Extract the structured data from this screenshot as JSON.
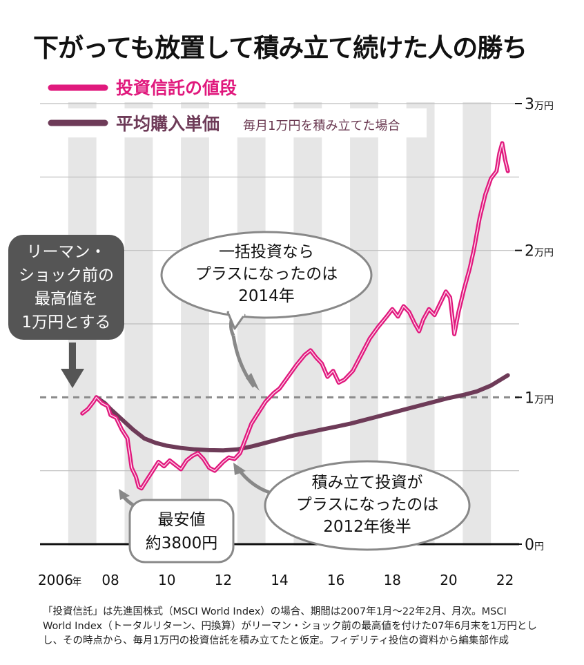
{
  "title": "下がっても放置して積み立て続けた人の勝ち",
  "legend": {
    "price_label": "投資信託の値段",
    "avg_label": "平均購入単価",
    "avg_note": "毎月1万円を積み立てた場合"
  },
  "colors": {
    "price": "#e0197d",
    "avg": "#6e3b58",
    "stripe": "#e6e6e6",
    "bubble_dark": "#555555",
    "bubble_light": "#ffffff"
  },
  "chart_data": {
    "type": "line",
    "x_unit": "年",
    "x_ticks": [
      {
        "value": 2006,
        "label": "2006",
        "unit": "年"
      },
      {
        "value": 2008,
        "label": "08"
      },
      {
        "value": 2010,
        "label": "10"
      },
      {
        "value": 2012,
        "label": "12"
      },
      {
        "value": 2014,
        "label": "14"
      },
      {
        "value": 2016,
        "label": "16"
      },
      {
        "value": 2018,
        "label": "18"
      },
      {
        "value": 2020,
        "label": "20"
      },
      {
        "value": 2022,
        "label": "22"
      }
    ],
    "y_ticks": [
      {
        "value": 0,
        "label": "0",
        "unit": "円"
      },
      {
        "value": 10000,
        "label": "1",
        "unit": "万円"
      },
      {
        "value": 20000,
        "label": "2",
        "unit": "万円"
      },
      {
        "value": 30000,
        "label": "3",
        "unit": "万円"
      }
    ],
    "xlim": [
      2005.5,
      2022.5
    ],
    "ylim": [
      0,
      30000
    ],
    "reference_line": {
      "y": 10000,
      "style": "dashed"
    },
    "series": [
      {
        "name": "投資信託の値段",
        "color": "#e0197d",
        "points": [
          [
            2007.0,
            8900
          ],
          [
            2007.2,
            9200
          ],
          [
            2007.4,
            9700
          ],
          [
            2007.5,
            10000
          ],
          [
            2007.7,
            9600
          ],
          [
            2007.9,
            9400
          ],
          [
            2008.0,
            8800
          ],
          [
            2008.2,
            8600
          ],
          [
            2008.4,
            7800
          ],
          [
            2008.6,
            7200
          ],
          [
            2008.75,
            5200
          ],
          [
            2008.9,
            4600
          ],
          [
            2009.0,
            3900
          ],
          [
            2009.1,
            3800
          ],
          [
            2009.3,
            4400
          ],
          [
            2009.5,
            5000
          ],
          [
            2009.7,
            5600
          ],
          [
            2009.9,
            5300
          ],
          [
            2010.1,
            5700
          ],
          [
            2010.3,
            5400
          ],
          [
            2010.5,
            5100
          ],
          [
            2010.7,
            5700
          ],
          [
            2010.9,
            6000
          ],
          [
            2011.1,
            6200
          ],
          [
            2011.3,
            5800
          ],
          [
            2011.5,
            5200
          ],
          [
            2011.7,
            5000
          ],
          [
            2011.9,
            5400
          ],
          [
            2012.0,
            5600
          ],
          [
            2012.2,
            5900
          ],
          [
            2012.4,
            5800
          ],
          [
            2012.6,
            6200
          ],
          [
            2012.8,
            7200
          ],
          [
            2013.0,
            8200
          ],
          [
            2013.2,
            8800
          ],
          [
            2013.5,
            9700
          ],
          [
            2013.8,
            10300
          ],
          [
            2014.0,
            10600
          ],
          [
            2014.3,
            11400
          ],
          [
            2014.6,
            12200
          ],
          [
            2014.9,
            12900
          ],
          [
            2015.1,
            13200
          ],
          [
            2015.3,
            12700
          ],
          [
            2015.5,
            12300
          ],
          [
            2015.7,
            11400
          ],
          [
            2015.9,
            11800
          ],
          [
            2016.1,
            11000
          ],
          [
            2016.3,
            11200
          ],
          [
            2016.6,
            11800
          ],
          [
            2016.9,
            12900
          ],
          [
            2017.2,
            14000
          ],
          [
            2017.5,
            14800
          ],
          [
            2017.8,
            15500
          ],
          [
            2018.0,
            16000
          ],
          [
            2018.2,
            15500
          ],
          [
            2018.4,
            16200
          ],
          [
            2018.6,
            15800
          ],
          [
            2018.8,
            15000
          ],
          [
            2018.95,
            14500
          ],
          [
            2019.1,
            15300
          ],
          [
            2019.3,
            16000
          ],
          [
            2019.5,
            15600
          ],
          [
            2019.7,
            16400
          ],
          [
            2019.9,
            17200
          ],
          [
            2020.05,
            16800
          ],
          [
            2020.2,
            14300
          ],
          [
            2020.35,
            15800
          ],
          [
            2020.55,
            17400
          ],
          [
            2020.75,
            18800
          ],
          [
            2020.9,
            20100
          ],
          [
            2021.1,
            22200
          ],
          [
            2021.3,
            23800
          ],
          [
            2021.5,
            24900
          ],
          [
            2021.7,
            25400
          ],
          [
            2021.8,
            26600
          ],
          [
            2021.9,
            27300
          ],
          [
            2022.0,
            26200
          ],
          [
            2022.1,
            25400
          ]
        ]
      },
      {
        "name": "平均購入単価",
        "color": "#6e3b58",
        "points": [
          [
            2007.5,
            10000
          ],
          [
            2007.8,
            9600
          ],
          [
            2008.0,
            9200
          ],
          [
            2008.4,
            8500
          ],
          [
            2008.8,
            7800
          ],
          [
            2009.2,
            7200
          ],
          [
            2009.6,
            6900
          ],
          [
            2010.0,
            6700
          ],
          [
            2010.5,
            6550
          ],
          [
            2011.0,
            6450
          ],
          [
            2011.5,
            6400
          ],
          [
            2012.0,
            6380
          ],
          [
            2012.5,
            6450
          ],
          [
            2013.0,
            6650
          ],
          [
            2013.5,
            6900
          ],
          [
            2014.0,
            7150
          ],
          [
            2014.5,
            7400
          ],
          [
            2015.0,
            7600
          ],
          [
            2015.5,
            7800
          ],
          [
            2016.0,
            8000
          ],
          [
            2016.5,
            8200
          ],
          [
            2017.0,
            8450
          ],
          [
            2017.5,
            8700
          ],
          [
            2018.0,
            8950
          ],
          [
            2018.5,
            9200
          ],
          [
            2019.0,
            9450
          ],
          [
            2019.5,
            9700
          ],
          [
            2020.0,
            9950
          ],
          [
            2020.5,
            10150
          ],
          [
            2021.0,
            10400
          ],
          [
            2021.5,
            10800
          ],
          [
            2022.1,
            11500
          ]
        ]
      }
    ],
    "annotations": {
      "lehman": [
        "リーマン・",
        "ショック前の",
        "最高値を",
        "1万円とする"
      ],
      "lump_sum": [
        "一括投資なら",
        "プラスになったのは",
        "2014年"
      ],
      "dca": [
        "積み立て投資が",
        "プラスになったのは",
        "2012年後半"
      ],
      "low": [
        "最安値",
        "約3800円"
      ]
    }
  },
  "footnote": [
    "「投資信託」は先進国株式（MSCI World Index）の場合、期間は2007年1月〜22年2月、月次。MSCI",
    "World Index（トータルリターン、円換算）がリーマン・ショック前の最高値を付けた07年6月末を1万円とし",
    "し、その時点から、毎月1万円の投資信託を積み立てたと仮定。フィデリティ投信の資料から編集部作成"
  ]
}
